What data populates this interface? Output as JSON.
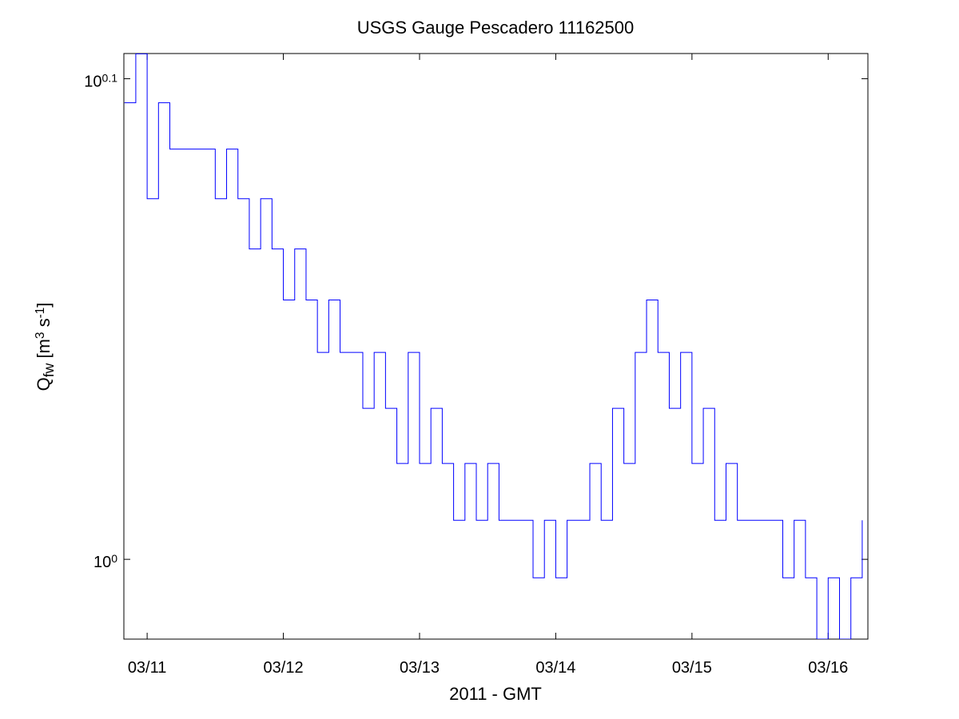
{
  "chart_data": {
    "type": "line",
    "title": "USGS Gauge Pescadero 11162500",
    "x_label": "2011 - GMT",
    "y_label": "Q_{fw} [m^{3} s^{-1}]",
    "x": [
      -4,
      -2,
      0,
      2,
      4,
      6,
      8,
      10,
      12,
      14,
      16,
      18,
      20,
      22,
      24,
      26,
      28,
      30,
      32,
      34,
      36,
      38,
      40,
      42,
      44,
      46,
      48,
      50,
      52,
      54,
      56,
      58,
      60,
      62,
      64,
      66,
      68,
      70,
      72,
      74,
      76,
      78,
      80,
      82,
      84,
      86,
      88,
      90,
      92,
      94,
      96,
      98,
      100,
      102,
      104,
      106,
      108,
      110,
      112,
      114,
      116,
      118,
      120,
      122,
      124,
      126
    ],
    "series": [
      {
        "color": "#0000ff",
        "values": [
          1.2445,
          1.274,
          1.1886,
          1.2445,
          1.2172,
          1.2172,
          1.2172,
          1.2172,
          1.1886,
          1.2172,
          1.1886,
          1.1603,
          1.1886,
          1.1603,
          1.1323,
          1.1603,
          1.1323,
          1.1042,
          1.1323,
          1.1042,
          1.1042,
          1.075,
          1.1042,
          1.075,
          1.047,
          1.1042,
          1.047,
          1.075,
          1.047,
          1.0189,
          1.047,
          1.0189,
          1.047,
          1.0189,
          1.0189,
          1.0189,
          0.9912,
          1.0189,
          0.9912,
          1.0189,
          1.0189,
          1.047,
          1.0189,
          1.075,
          1.047,
          1.1042,
          1.1323,
          1.1042,
          1.075,
          1.1042,
          1.047,
          1.075,
          1.0189,
          1.047,
          1.0189,
          1.0189,
          1.0189,
          1.0189,
          0.9912,
          1.0189,
          0.9912,
          0.9625,
          0.9912,
          0.9625,
          0.9912,
          1.0189
        ]
      }
    ],
    "xlim": [
      -4.1,
      127
    ],
    "xticks": [
      {
        "value": 0,
        "label": "03/11"
      },
      {
        "value": 24,
        "label": "03/12"
      },
      {
        "value": 48,
        "label": "03/13"
      },
      {
        "value": 72,
        "label": "03/14"
      },
      {
        "value": 96,
        "label": "03/15"
      },
      {
        "value": 120,
        "label": "03/16"
      }
    ],
    "ylim": [
      0.9625,
      1.2742
    ],
    "yticks": [
      {
        "value": 1,
        "label": "10^{0}"
      },
      {
        "value": 1.2589,
        "label": "10^{0.1}"
      }
    ],
    "log_y": true,
    "grid": false,
    "step": true
  }
}
